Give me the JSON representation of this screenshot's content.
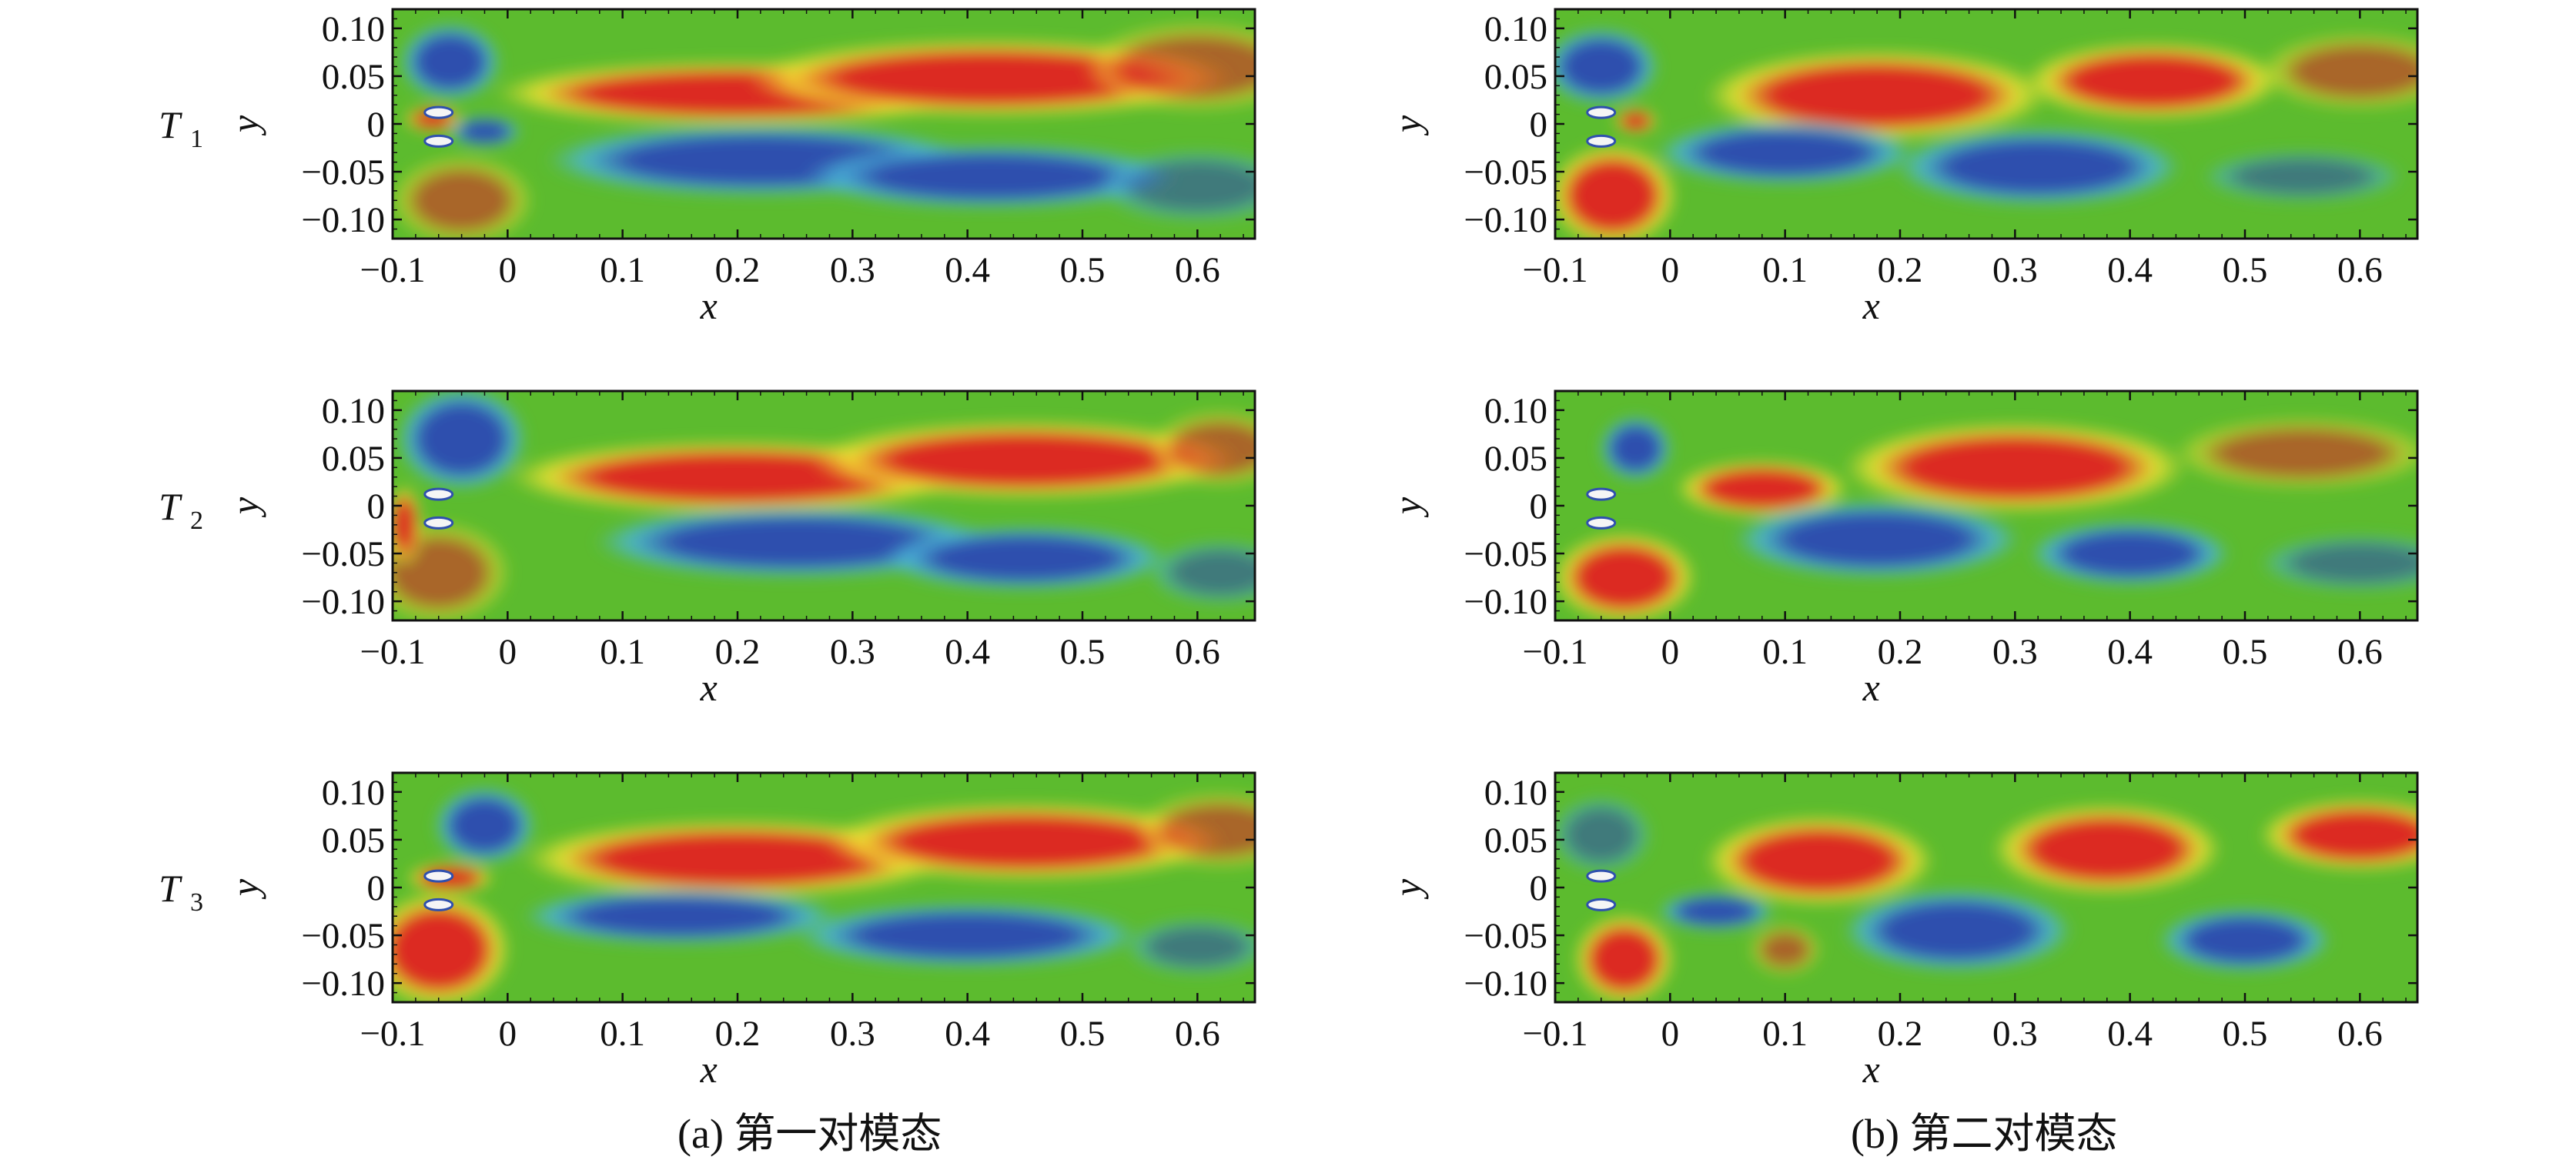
{
  "chart_data": {
    "type": "heatmap",
    "description_type": "contour field panels",
    "x_axis": {
      "label": "x",
      "range": [
        -0.1,
        0.65
      ],
      "ticks": [
        -0.1,
        0,
        0.1,
        0.2,
        0.3,
        0.4,
        0.5,
        0.6
      ],
      "tick_labels": [
        "−0.1",
        "0",
        "0.1",
        "0.2",
        "0.3",
        "0.4",
        "0.5",
        "0.6"
      ]
    },
    "y_axis": {
      "label": "y",
      "range": [
        -0.12,
        0.12
      ],
      "ticks": [
        0.1,
        0.05,
        0,
        -0.05,
        -0.1
      ],
      "tick_labels": [
        "0.10",
        "0.05",
        "0",
        "−0.05",
        "−0.10"
      ]
    },
    "rows": [
      {
        "label": "T",
        "sub": "1"
      },
      {
        "label": "T",
        "sub": "2"
      },
      {
        "label": "T",
        "sub": "3"
      }
    ],
    "columns": [
      {
        "caption_label": "(a)",
        "caption_text": "第一对模态"
      },
      {
        "caption_label": "(b)",
        "caption_text": "第二对模态"
      }
    ],
    "colors": {
      "background": "#5cbb2e",
      "positive": "#dc2b23",
      "negative": "#2f50ae",
      "mid_positive": "#f3e433",
      "mid_negative": "#4ab5d8"
    },
    "panels": [
      {
        "row": 0,
        "col": 0,
        "blobs": [
          {
            "x": -0.05,
            "y": 0.065,
            "rx": 0.035,
            "ry": 0.03,
            "v": -0.8
          },
          {
            "x": -0.04,
            "y": -0.08,
            "rx": 0.05,
            "ry": 0.035,
            "v": 0.65
          },
          {
            "x": 0.2,
            "y": 0.032,
            "rx": 0.17,
            "ry": 0.025,
            "v": 1
          },
          {
            "x": 0.42,
            "y": 0.048,
            "rx": 0.17,
            "ry": 0.03,
            "v": 1
          },
          {
            "x": 0.6,
            "y": 0.06,
            "rx": 0.08,
            "ry": 0.035,
            "v": 0.5
          },
          {
            "x": 0.22,
            "y": -0.038,
            "rx": 0.15,
            "ry": 0.028,
            "v": -1
          },
          {
            "x": 0.42,
            "y": -0.055,
            "rx": 0.13,
            "ry": 0.025,
            "v": -0.85
          },
          {
            "x": 0.6,
            "y": -0.065,
            "rx": 0.07,
            "ry": 0.028,
            "v": -0.45
          },
          {
            "x": -0.02,
            "y": -0.008,
            "rx": 0.025,
            "ry": 0.012,
            "v": -0.9
          },
          {
            "x": -0.065,
            "y": 0.005,
            "rx": 0.02,
            "ry": 0.01,
            "v": 0.8
          }
        ]
      },
      {
        "row": 0,
        "col": 1,
        "blobs": [
          {
            "x": -0.06,
            "y": 0.06,
            "rx": 0.04,
            "ry": 0.03,
            "v": -0.7
          },
          {
            "x": -0.05,
            "y": -0.075,
            "rx": 0.045,
            "ry": 0.04,
            "v": 0.8
          },
          {
            "x": 0.18,
            "y": 0.03,
            "rx": 0.12,
            "ry": 0.035,
            "v": 1
          },
          {
            "x": 0.42,
            "y": 0.045,
            "rx": 0.09,
            "ry": 0.03,
            "v": 1
          },
          {
            "x": 0.6,
            "y": 0.055,
            "rx": 0.07,
            "ry": 0.03,
            "v": 0.55
          },
          {
            "x": 0.1,
            "y": -0.03,
            "rx": 0.09,
            "ry": 0.025,
            "v": -1
          },
          {
            "x": 0.32,
            "y": -0.045,
            "rx": 0.1,
            "ry": 0.03,
            "v": -1
          },
          {
            "x": 0.55,
            "y": -0.055,
            "rx": 0.07,
            "ry": 0.02,
            "v": -0.55
          },
          {
            "x": -0.03,
            "y": 0.003,
            "rx": 0.015,
            "ry": 0.01,
            "v": 0.9
          }
        ]
      },
      {
        "row": 1,
        "col": 0,
        "blobs": [
          {
            "x": -0.04,
            "y": 0.07,
            "rx": 0.045,
            "ry": 0.04,
            "v": -0.9
          },
          {
            "x": -0.06,
            "y": -0.07,
            "rx": 0.05,
            "ry": 0.04,
            "v": 0.55
          },
          {
            "x": 0.2,
            "y": 0.03,
            "rx": 0.16,
            "ry": 0.028,
            "v": 1
          },
          {
            "x": 0.45,
            "y": 0.048,
            "rx": 0.15,
            "ry": 0.03,
            "v": 1
          },
          {
            "x": 0.62,
            "y": 0.06,
            "rx": 0.05,
            "ry": 0.03,
            "v": 0.5
          },
          {
            "x": 0.25,
            "y": -0.038,
            "rx": 0.14,
            "ry": 0.028,
            "v": -1
          },
          {
            "x": 0.45,
            "y": -0.055,
            "rx": 0.1,
            "ry": 0.025,
            "v": -0.8
          },
          {
            "x": 0.62,
            "y": -0.07,
            "rx": 0.05,
            "ry": 0.025,
            "v": -0.45
          },
          {
            "x": -0.09,
            "y": -0.02,
            "rx": 0.012,
            "ry": 0.03,
            "v": 0.85
          }
        ]
      },
      {
        "row": 1,
        "col": 1,
        "blobs": [
          {
            "x": -0.03,
            "y": 0.06,
            "rx": 0.025,
            "ry": 0.025,
            "v": -0.8
          },
          {
            "x": -0.04,
            "y": -0.075,
            "rx": 0.05,
            "ry": 0.035,
            "v": 0.75
          },
          {
            "x": 0.08,
            "y": 0.018,
            "rx": 0.06,
            "ry": 0.022,
            "v": 1
          },
          {
            "x": 0.3,
            "y": 0.04,
            "rx": 0.12,
            "ry": 0.035,
            "v": 1
          },
          {
            "x": 0.55,
            "y": 0.055,
            "rx": 0.09,
            "ry": 0.028,
            "v": 0.65
          },
          {
            "x": 0.18,
            "y": -0.035,
            "rx": 0.1,
            "ry": 0.03,
            "v": -1
          },
          {
            "x": 0.4,
            "y": -0.05,
            "rx": 0.07,
            "ry": 0.025,
            "v": -0.9
          },
          {
            "x": 0.6,
            "y": -0.06,
            "rx": 0.07,
            "ry": 0.022,
            "v": -0.4
          }
        ]
      },
      {
        "row": 2,
        "col": 0,
        "blobs": [
          {
            "x": -0.02,
            "y": 0.065,
            "rx": 0.035,
            "ry": 0.03,
            "v": -0.75
          },
          {
            "x": -0.06,
            "y": -0.065,
            "rx": 0.05,
            "ry": 0.045,
            "v": 0.95
          },
          {
            "x": 0.2,
            "y": 0.03,
            "rx": 0.15,
            "ry": 0.03,
            "v": 1
          },
          {
            "x": 0.45,
            "y": 0.048,
            "rx": 0.14,
            "ry": 0.03,
            "v": 1
          },
          {
            "x": 0.62,
            "y": 0.06,
            "rx": 0.06,
            "ry": 0.03,
            "v": 0.6
          },
          {
            "x": 0.15,
            "y": -0.03,
            "rx": 0.11,
            "ry": 0.022,
            "v": -1
          },
          {
            "x": 0.4,
            "y": -0.05,
            "rx": 0.12,
            "ry": 0.025,
            "v": -0.9
          },
          {
            "x": 0.6,
            "y": -0.062,
            "rx": 0.05,
            "ry": 0.022,
            "v": -0.4
          },
          {
            "x": -0.05,
            "y": 0.01,
            "rx": 0.03,
            "ry": 0.012,
            "v": 0.9
          }
        ]
      },
      {
        "row": 2,
        "col": 1,
        "blobs": [
          {
            "x": -0.06,
            "y": 0.055,
            "rx": 0.035,
            "ry": 0.03,
            "v": -0.6
          },
          {
            "x": -0.04,
            "y": -0.075,
            "rx": 0.035,
            "ry": 0.035,
            "v": 0.8
          },
          {
            "x": 0.13,
            "y": 0.028,
            "rx": 0.08,
            "ry": 0.035,
            "v": 1
          },
          {
            "x": 0.38,
            "y": 0.04,
            "rx": 0.08,
            "ry": 0.035,
            "v": 1
          },
          {
            "x": 0.6,
            "y": 0.055,
            "rx": 0.07,
            "ry": 0.028,
            "v": 0.75
          },
          {
            "x": 0.04,
            "y": -0.025,
            "rx": 0.04,
            "ry": 0.015,
            "v": -0.95
          },
          {
            "x": 0.25,
            "y": -0.045,
            "rx": 0.08,
            "ry": 0.032,
            "v": -1
          },
          {
            "x": 0.5,
            "y": -0.055,
            "rx": 0.06,
            "ry": 0.025,
            "v": -0.9
          },
          {
            "x": 0.1,
            "y": -0.065,
            "rx": 0.025,
            "ry": 0.02,
            "v": 0.35
          }
        ]
      }
    ]
  }
}
